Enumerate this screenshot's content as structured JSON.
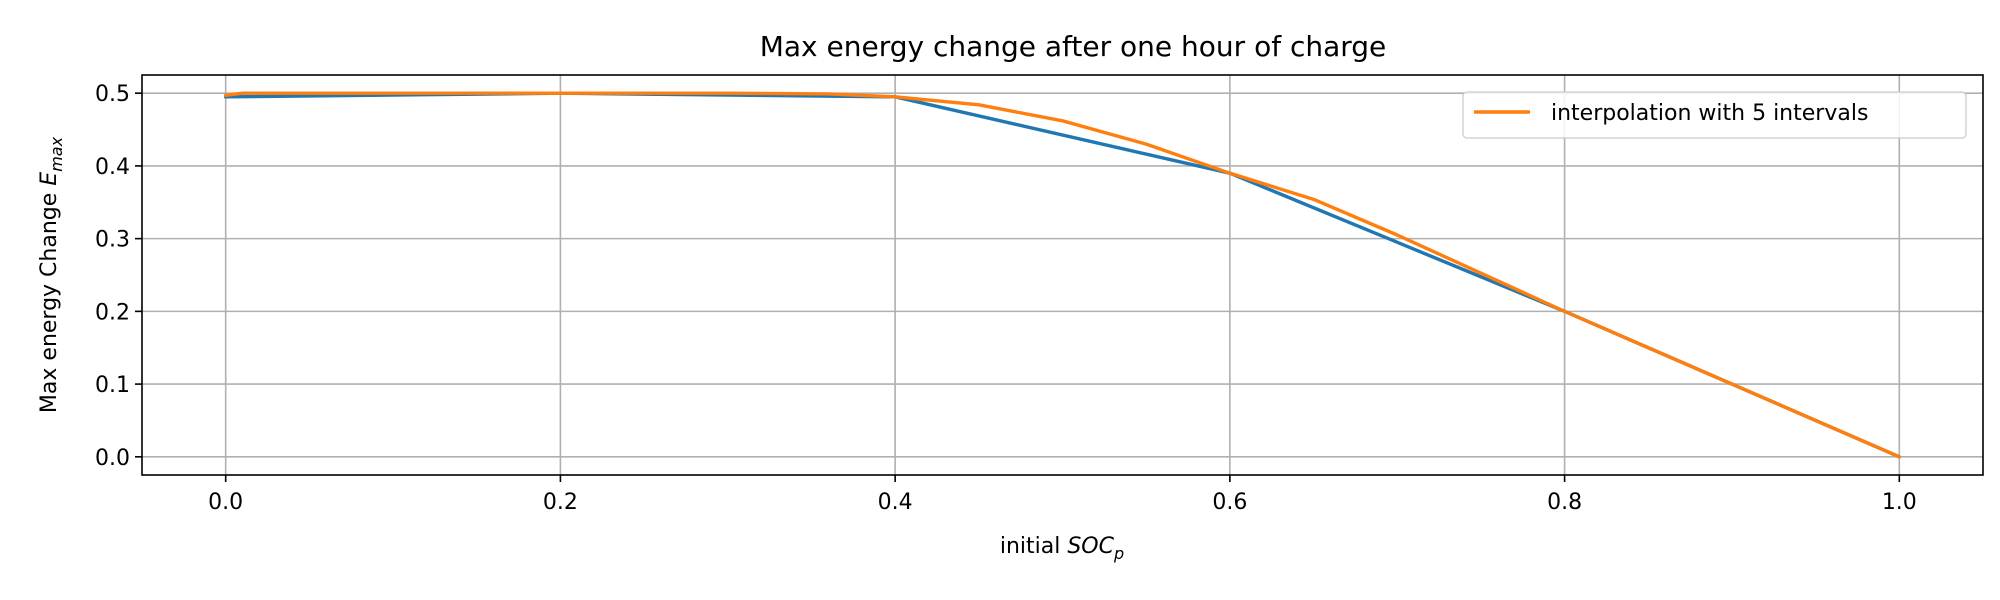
{
  "chart_data": {
    "type": "line",
    "title": "Max energy change after one hour of charge",
    "xlabel": {
      "prefix": "initial ",
      "var": "SOC",
      "sub": "p"
    },
    "ylabel": {
      "prefix": "Max energy Change ",
      "var": "E",
      "sub": "max"
    },
    "xlim": [
      -0.05,
      1.05
    ],
    "ylim": [
      -0.025,
      0.525
    ],
    "xticks": [
      0.0,
      0.2,
      0.4,
      0.6,
      0.8,
      1.0
    ],
    "xtick_labels": [
      "0.0",
      "0.2",
      "0.4",
      "0.6",
      "0.8",
      "1.0"
    ],
    "yticks": [
      0.0,
      0.1,
      0.2,
      0.3,
      0.4,
      0.5
    ],
    "ytick_labels": [
      "0.0",
      "0.1",
      "0.2",
      "0.3",
      "0.4",
      "0.5"
    ],
    "grid": true,
    "legend_position": "top-right",
    "series": [
      {
        "color": "#1f77b4",
        "x": [
          0.0,
          0.2,
          0.4,
          0.6,
          0.8,
          1.0
        ],
        "y": [
          0.495,
          0.5,
          0.495,
          0.39,
          0.2,
          0.0
        ]
      },
      {
        "name": "interpolation with 5 intervals",
        "color": "#ff7f0e",
        "x": [
          0.0,
          0.01,
          0.1,
          0.2,
          0.3,
          0.36,
          0.4,
          0.45,
          0.5,
          0.55,
          0.6,
          0.65,
          0.7,
          0.8,
          0.9,
          1.0
        ],
        "y": [
          0.497,
          0.5,
          0.5,
          0.5,
          0.5,
          0.499,
          0.495,
          0.484,
          0.462,
          0.43,
          0.39,
          0.354,
          0.305,
          0.2,
          0.1,
          0.0
        ]
      }
    ]
  }
}
